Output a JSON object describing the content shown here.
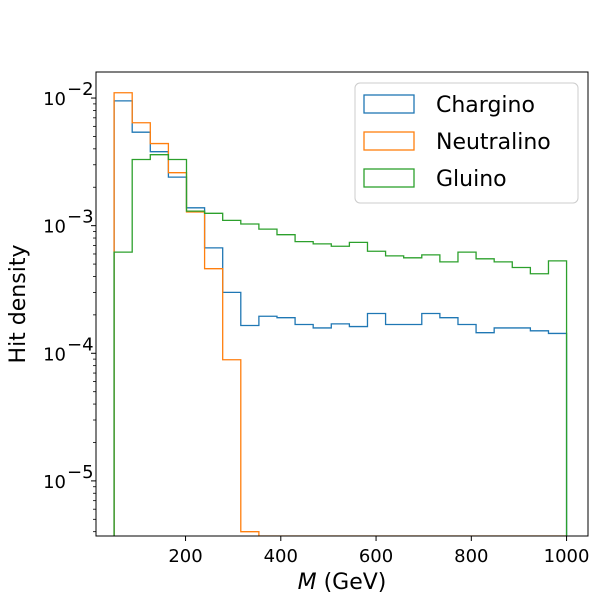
{
  "chart_data": {
    "type": "histogram",
    "title": "",
    "xlabel_var": "M",
    "xlabel_unit": " (GeV)",
    "ylabel": "Hit density",
    "y_scale": "log",
    "xlim": [
      12,
      1045
    ],
    "ylim": [
      3.7e-06,
      0.016
    ],
    "grid": false,
    "legend_position": "upper-right",
    "x_ticks": [
      200,
      400,
      600,
      800,
      1000
    ],
    "y_ticks": [
      {
        "value": 0.01,
        "base": "10",
        "exp": "−2"
      },
      {
        "value": 0.001,
        "base": "10",
        "exp": "−3"
      },
      {
        "value": 0.0001,
        "base": "10",
        "exp": "−4"
      },
      {
        "value": 1e-05,
        "base": "10",
        "exp": "−5"
      }
    ],
    "bin_edges": [
      50,
      88,
      126,
      164,
      202,
      240,
      278,
      316,
      354,
      392,
      430,
      468,
      506,
      544,
      582,
      620,
      658,
      696,
      734,
      772,
      810,
      848,
      886,
      924,
      962,
      1000
    ],
    "series": [
      {
        "name": "Chargino",
        "color": "#1f77b4",
        "values": [
          0.0095,
          0.0054,
          0.0038,
          0.0024,
          0.00138,
          0.00067,
          0.0003,
          0.000165,
          0.000195,
          0.00019,
          0.000168,
          0.000158,
          0.00017,
          0.000162,
          0.000205,
          0.000168,
          0.000168,
          0.000205,
          0.00019,
          0.000168,
          0.000145,
          0.000158,
          0.000158,
          0.00015,
          0.000143
        ]
      },
      {
        "name": "Neutralino",
        "color": "#ff7f0e",
        "values": [
          0.011,
          0.0064,
          0.0044,
          0.0026,
          0.00128,
          0.00046,
          8.9e-05,
          4e-06,
          0,
          0,
          0,
          0,
          0,
          0,
          0,
          0,
          0,
          0,
          0,
          0,
          0,
          0,
          0,
          0,
          0
        ]
      },
      {
        "name": "Gluino",
        "color": "#2ca02c",
        "values": [
          0.00062,
          0.0033,
          0.0036,
          0.0033,
          0.0013,
          0.00125,
          0.0011,
          0.00103,
          0.00094,
          0.00085,
          0.00075,
          0.00072,
          0.00069,
          0.00074,
          0.00063,
          0.00058,
          0.00056,
          0.00059,
          0.00052,
          0.00062,
          0.00055,
          0.00052,
          0.00047,
          0.00042,
          0.00053
        ]
      }
    ]
  }
}
